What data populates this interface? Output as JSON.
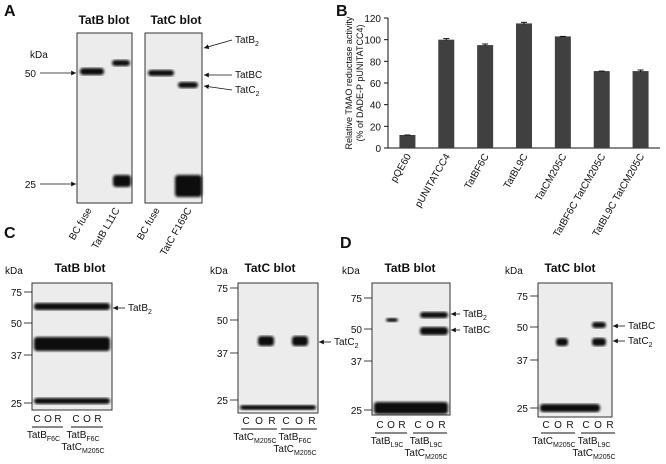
{
  "panel_a": {
    "label": "A",
    "kda": "kDa",
    "titles": [
      "TatB blot",
      "TatC blot"
    ],
    "markers": [
      "50",
      "25"
    ],
    "bands": [
      {
        "main": "TatB",
        "sub": "2"
      },
      {
        "main": "TatBC"
      },
      {
        "main": "TatC",
        "sub": "2"
      }
    ],
    "lanes": [
      "BC fuse",
      "TatB L11C",
      "BC fuse",
      "TatC F169C"
    ]
  },
  "panel_b": {
    "label": "B"
  },
  "chart_data": {
    "type": "bar",
    "ylabel": [
      "Relative TMAO reductase activity",
      "(% of DADE-P pUNITATCC4)"
    ],
    "categories": [
      "pQE60",
      "pUNITATCC4",
      "TatBF6C",
      "TatBL9C",
      "TatCM205C",
      "TatBF6C TatCM205C",
      "TatBL9C TatCM205C"
    ],
    "values": [
      12,
      100,
      95,
      115,
      103,
      71,
      71
    ],
    "errors": [
      0,
      1,
      1,
      1,
      0,
      0,
      1
    ],
    "color": "#404040",
    "ylim": [
      0,
      120
    ],
    "yticks": [
      0,
      20,
      40,
      60,
      80,
      100,
      120
    ]
  },
  "panel_c": {
    "label": "C",
    "blots": [
      {
        "title": "TatB blot",
        "kda": "kDa",
        "markers": [
          "75",
          "50",
          "37",
          "25"
        ],
        "bands": [
          {
            "main": "TatB",
            "sub": "2"
          }
        ],
        "lanes": [
          "C",
          "O",
          "R",
          "C",
          "O",
          "R"
        ],
        "groups": [
          [
            {
              "main": "TatB",
              "sub": "F6C"
            }
          ],
          [
            {
              "main": "TatB",
              "sub": "F6C"
            },
            {
              "main": "TatC",
              "sub": "M205C"
            }
          ]
        ]
      },
      {
        "title": "TatC blot",
        "kda": "kDa",
        "markers": [
          "75",
          "50",
          "37",
          "25"
        ],
        "bands": [
          {
            "main": "TatC",
            "sub": "2"
          }
        ],
        "lanes": [
          "C",
          "O",
          "R",
          "C",
          "O",
          "R"
        ],
        "groups": [
          [
            {
              "main": "TatC",
              "sub": "M205C"
            }
          ],
          [
            {
              "main": "TatB",
              "sub": "F6C"
            },
            {
              "main": "TatC",
              "sub": "M205C"
            }
          ]
        ]
      }
    ]
  },
  "panel_d": {
    "label": "D",
    "blots": [
      {
        "title": "TatB blot",
        "kda": "kDa",
        "markers": [
          "75",
          "50",
          "37",
          "25"
        ],
        "bands": [
          {
            "main": "TatB",
            "sub": "2"
          },
          {
            "main": "TatBC"
          }
        ],
        "lanes": [
          "C",
          "O",
          "R",
          "C",
          "O",
          "R"
        ],
        "groups": [
          [
            {
              "main": "TatB",
              "sub": "L9C"
            }
          ],
          [
            {
              "main": "TatB",
              "sub": "L9C"
            },
            {
              "main": "TatC",
              "sub": "M205C"
            }
          ]
        ]
      },
      {
        "title": "TatC blot",
        "kda": "kDa",
        "markers": [
          "75",
          "50",
          "37",
          "25"
        ],
        "bands": [
          {
            "main": "TatBC"
          },
          {
            "main": "TatC",
            "sub": "2"
          }
        ],
        "lanes": [
          "C",
          "O",
          "R",
          "C",
          "O",
          "R"
        ],
        "groups": [
          [
            {
              "main": "TatC",
              "sub": "M205C"
            }
          ],
          [
            {
              "main": "TatB",
              "sub": "L9C"
            },
            {
              "main": "TatC",
              "sub": "M205C"
            }
          ]
        ]
      }
    ]
  }
}
